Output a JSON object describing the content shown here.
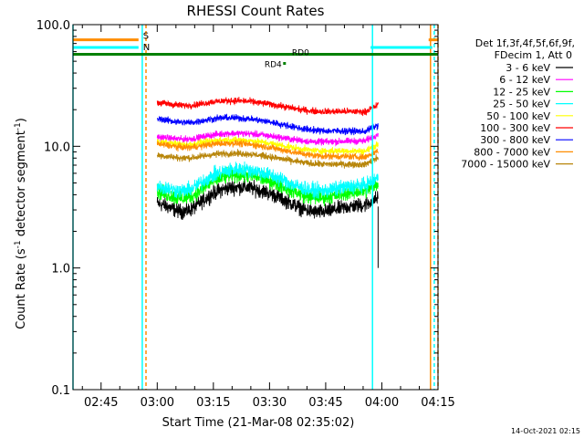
{
  "chart_data": {
    "type": "line",
    "title": "RHESSI Count Rates",
    "xlabel": "Start Time (21-Mar-08 02:35:02)",
    "ylabel_main": "Count Rate (s",
    "ylabel_sup1": "-1",
    "ylabel_mid": " detector segment",
    "ylabel_sup2": "-1",
    "ylabel_end": ")",
    "y_scale": "log",
    "ylim": [
      0.1,
      100.0
    ],
    "xlim_minutes": [
      2.5,
      100.0
    ],
    "x_ticks": [
      {
        "label": "02:45",
        "minute": 10
      },
      {
        "label": "03:00",
        "minute": 25
      },
      {
        "label": "03:15",
        "minute": 40
      },
      {
        "label": "03:30",
        "minute": 55
      },
      {
        "label": "03:45",
        "minute": 70
      },
      {
        "label": "04:00",
        "minute": 85
      },
      {
        "label": "04:15",
        "minute": 100
      }
    ],
    "y_ticks": [
      {
        "label": "0.1",
        "value": 0.1
      },
      {
        "label": "1.0",
        "value": 1.0
      },
      {
        "label": "10.0",
        "value": 10.0
      },
      {
        "label": "100.0",
        "value": 100.0
      }
    ],
    "legend_header": [
      "Det 1f,3f,4f,5f,6f,9f,",
      "FDecim 1, Att 0"
    ],
    "legend_placement": "right",
    "series": [
      {
        "name": "3 - 6 keV",
        "color": "#000000",
        "start": 3.5,
        "end": 3.3,
        "dip": 0.6
      },
      {
        "name": "6 - 12 keV",
        "color": "#ff00ff",
        "start": 12.0,
        "end": 11.0,
        "dip": 0.9
      },
      {
        "name": "12 - 25 keV",
        "color": "#00ff00",
        "start": 4.3,
        "end": 4.3,
        "dip": 0.65
      },
      {
        "name": "25 - 50 keV",
        "color": "#00ffff",
        "start": 4.8,
        "end": 4.8,
        "dip": 0.7
      },
      {
        "name": "50 - 100 keV",
        "color": "#ffff00",
        "start": 11.0,
        "end": 9.0,
        "dip": 0.9
      },
      {
        "name": "100 - 300 keV",
        "color": "#ff0000",
        "start": 23.0,
        "end": 19.0,
        "dip": 0.9
      },
      {
        "name": "300 - 800 keV",
        "color": "#0000ff",
        "start": 17.0,
        "end": 13.0,
        "dip": 0.88
      },
      {
        "name": "800 - 7000 keV",
        "color": "#ff8c00",
        "start": 10.5,
        "end": 8.0,
        "dip": 0.9
      },
      {
        "name": "7000 - 15000 keV",
        "color": "#b8860b",
        "start": 8.5,
        "end": 7.0,
        "dip": 0.9
      }
    ],
    "data_minute_range": [
      25.0,
      84.0
    ],
    "segments": [
      {
        "label": "S",
        "color": "#ff8c00",
        "y": 75.0,
        "ranges": [
          [
            2.5,
            20.0
          ],
          [
            97.5,
            100.0
          ]
        ]
      },
      {
        "label": "N",
        "color": "#00ffff",
        "y": 65.0,
        "ranges": [
          [
            2.5,
            20.0
          ],
          [
            82.0,
            98.5
          ]
        ]
      },
      {
        "label": "",
        "color": "#008000",
        "y": 57.0,
        "ranges": [
          [
            2.5,
            100.0
          ]
        ]
      }
    ],
    "markers": [
      {
        "label": "RD4",
        "color": "#008000",
        "minute": 59.0
      },
      {
        "label": "RD0",
        "color": "#008000",
        "minute": 60.0
      }
    ],
    "vertical_lines": [
      {
        "minute": 2.5,
        "color": "#00ffff",
        "style": "solid"
      },
      {
        "minute": 21.0,
        "color": "#00ffff",
        "style": "solid"
      },
      {
        "minute": 22.0,
        "color": "#ff8c00",
        "style": "dashed"
      },
      {
        "minute": 82.5,
        "color": "#00ffff",
        "style": "solid"
      },
      {
        "minute": 98.0,
        "color": "#ff8c00",
        "style": "solid"
      },
      {
        "minute": 99.0,
        "color": "#00ffff",
        "style": "dashed"
      },
      {
        "minute": 100.0,
        "color": "#ff8c00",
        "style": "dashed"
      }
    ]
  },
  "footer_timestamp": "14-Oct-2021 02:15"
}
